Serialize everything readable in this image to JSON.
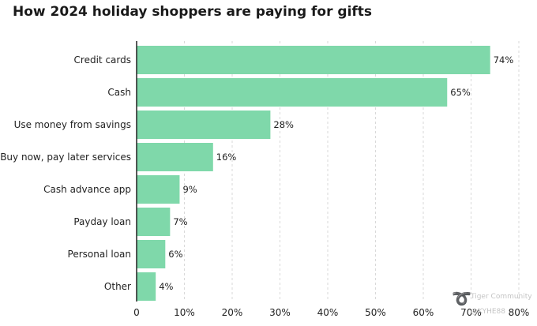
{
  "page_title": "How 2024 holiday shoppers are paying for gifts",
  "watermark": {
    "logo_icon": "tiger-logo-icon",
    "brand": "Tiger Community",
    "handle": "@KYHE88"
  },
  "chart_data": {
    "type": "bar",
    "orientation": "horizontal",
    "title": "How 2024 holiday shoppers are paying for gifts",
    "categories": [
      "Credit cards",
      "Cash",
      "Use money from savings",
      "Buy now, pay later services",
      "Cash advance app",
      "Payday loan",
      "Personal loan",
      "Other"
    ],
    "values": [
      74,
      65,
      28,
      16,
      9,
      7,
      6,
      4
    ],
    "value_labels": [
      "74%",
      "65%",
      "28%",
      "16%",
      "9%",
      "7%",
      "6%",
      "4%"
    ],
    "xlim": [
      0,
      80
    ],
    "x_ticks": [
      0,
      10,
      20,
      30,
      40,
      50,
      60,
      70,
      80
    ],
    "x_tick_labels": [
      "0",
      "10%",
      "20%",
      "30%",
      "40%",
      "50%",
      "60%",
      "70%",
      "80%"
    ],
    "xlabel": "",
    "ylabel": "",
    "grid": "vertical dashed",
    "legend": "none",
    "colors": {
      "bar": "#7fd8aa",
      "grid": "#d9d9d9",
      "axis": "#222222"
    }
  }
}
